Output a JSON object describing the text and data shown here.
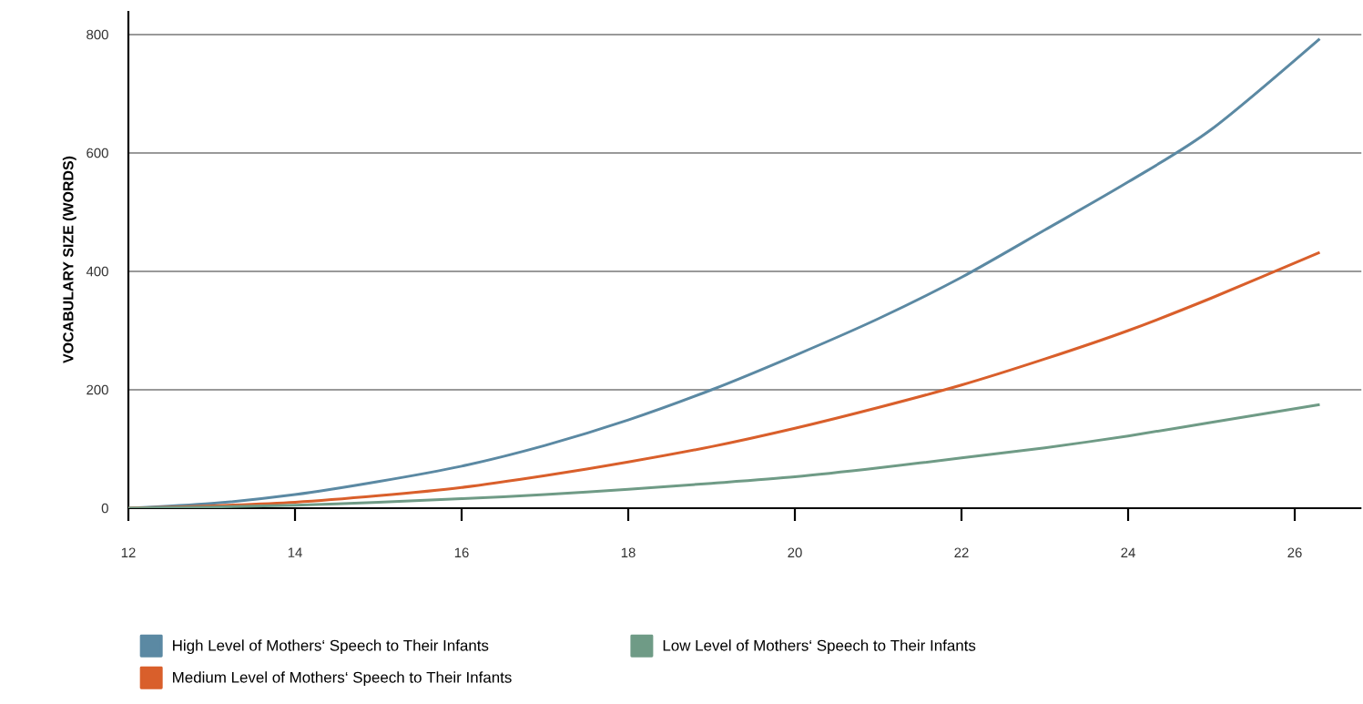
{
  "chart_data": {
    "type": "line",
    "ylabel": "VOCABULARY SIZE (WORDS)",
    "xlim": [
      12,
      26.8
    ],
    "ylim": [
      0,
      840
    ],
    "xticks": [
      12,
      14,
      16,
      18,
      20,
      22,
      24,
      26
    ],
    "yticks": [
      0,
      200,
      400,
      600,
      800
    ],
    "grid": "y",
    "legend": "bottom",
    "marker": "none",
    "line_style": "solid",
    "series": [
      {
        "name": "High Level of Mothers‘ Speech to Their Infants",
        "color": "#5b89a3",
        "x": [
          12,
          13,
          14,
          15,
          16,
          17,
          18,
          19,
          20,
          21,
          22,
          23,
          24,
          25,
          26.3
        ],
        "values": [
          0,
          8,
          23,
          45,
          71,
          106,
          149,
          200,
          258,
          320,
          390,
          470,
          551,
          640,
          793
        ]
      },
      {
        "name": "Medium Level of Mothers‘ Speech to Their Infants",
        "color": "#d95f2b",
        "x": [
          12,
          13,
          14,
          15,
          16,
          17,
          18,
          19,
          20,
          21,
          22,
          23,
          24,
          25,
          26.3
        ],
        "values": [
          0,
          4,
          10,
          21,
          35,
          55,
          78,
          104,
          135,
          170,
          208,
          252,
          300,
          355,
          432
        ]
      },
      {
        "name": "Low Level of Mothers‘ Speech to Their Infants",
        "color": "#6f9b86",
        "x": [
          12,
          13,
          14,
          15,
          16,
          17,
          18,
          19,
          20,
          21,
          22,
          23,
          24,
          25,
          26.3
        ],
        "values": [
          0,
          2,
          5,
          10,
          16,
          23,
          32,
          42,
          53,
          68,
          85,
          102,
          122,
          145,
          175
        ]
      }
    ]
  }
}
